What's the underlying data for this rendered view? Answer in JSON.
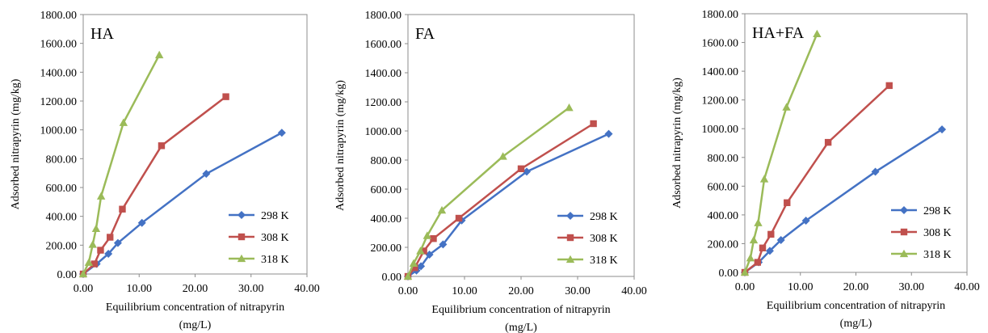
{
  "chart_data": [
    {
      "type": "line",
      "title": "HA",
      "xlabel_line1": "Equilibrium concentration of nitrapyrin",
      "xlabel_line2": "(mg/L)",
      "ylabel": "Adsorbed nitrapyrin (mg/kg)",
      "xlim": [
        0,
        40
      ],
      "ylim": [
        0,
        1800
      ],
      "xticks": [
        "0.00",
        "10.00",
        "20.00",
        "30.00",
        "40.00"
      ],
      "yticks": [
        "0.00",
        "200.00",
        "400.00",
        "600.00",
        "800.00",
        "1000.00",
        "1200.00",
        "1400.00",
        "1600.00",
        "1800.00"
      ],
      "grid": false,
      "legend_position": "bottom-right",
      "series": [
        {
          "name": "298 K",
          "color": "#4472C4",
          "marker": "diamond",
          "x": [
            0,
            2.4,
            4.5,
            6.2,
            10.5,
            22,
            35.5
          ],
          "y": [
            0,
            70,
            140,
            215,
            355,
            695,
            980
          ]
        },
        {
          "name": "308 K",
          "color": "#C0504D",
          "marker": "square",
          "x": [
            0,
            2.0,
            3.1,
            4.8,
            7.0,
            14.0,
            25.5
          ],
          "y": [
            0,
            70,
            165,
            255,
            450,
            890,
            1230
          ]
        },
        {
          "name": "318 K",
          "color": "#9BBB59",
          "marker": "triangle",
          "x": [
            0,
            1.0,
            1.7,
            2.3,
            3.2,
            7.2,
            13.6
          ],
          "y": [
            0,
            80,
            205,
            315,
            540,
            1050,
            1520
          ]
        }
      ]
    },
    {
      "type": "line",
      "title": "FA",
      "xlabel_line1": "Equilibrium concentration of nitrapyrin",
      "xlabel_line2": "(mg/L)",
      "ylabel": "Adsorbed nitrapyrin (mg/kg)",
      "xlim": [
        0,
        40
      ],
      "ylim": [
        0,
        1800
      ],
      "xticks": [
        "0.00",
        "10.00",
        "20.00",
        "30.00",
        "40.00"
      ],
      "yticks": [
        "0.00",
        "200.00",
        "400.00",
        "600.00",
        "800.00",
        "1000.00",
        "1200.00",
        "1400.00",
        "1600.00",
        "1800.00"
      ],
      "grid": false,
      "legend_position": "bottom-right",
      "series": [
        {
          "name": "298 K",
          "color": "#4472C4",
          "marker": "diamond",
          "x": [
            0,
            1.5,
            2.3,
            3.8,
            6.2,
            9.5,
            21,
            35.5
          ],
          "y": [
            0,
            40,
            70,
            150,
            220,
            385,
            720,
            980
          ]
        },
        {
          "name": "308 K",
          "color": "#C0504D",
          "marker": "square",
          "x": [
            0,
            1.2,
            2.8,
            4.5,
            9.0,
            20.0,
            32.8
          ],
          "y": [
            0,
            60,
            175,
            260,
            400,
            740,
            1050
          ]
        },
        {
          "name": "318 K",
          "color": "#9BBB59",
          "marker": "triangle",
          "x": [
            0,
            1.0,
            2.2,
            3.4,
            6.0,
            16.8,
            28.5
          ],
          "y": [
            0,
            90,
            175,
            280,
            455,
            825,
            1160
          ]
        }
      ]
    },
    {
      "type": "line",
      "title": "HA+FA",
      "xlabel_line1": "Equilibrium concentration of nitrapyrin",
      "xlabel_line2": "(mg/L)",
      "ylabel": "Adsorbed nitrapyrin (mg/kg)",
      "xlim": [
        0,
        40
      ],
      "ylim": [
        0,
        1800
      ],
      "xticks": [
        "0.00",
        "10.00",
        "20.00",
        "30.00",
        "40.00"
      ],
      "yticks": [
        "0.00",
        "200.00",
        "400.00",
        "600.00",
        "800.00",
        "1000.00",
        "1200.00",
        "1400.00",
        "1600.00",
        "1800.00"
      ],
      "grid": false,
      "legend_position": "bottom-right",
      "series": [
        {
          "name": "298 K",
          "color": "#4472C4",
          "marker": "diamond",
          "x": [
            0,
            2.5,
            4.5,
            6.5,
            11.0,
            23.5,
            35.5
          ],
          "y": [
            0,
            70,
            150,
            225,
            360,
            700,
            995
          ]
        },
        {
          "name": "308 K",
          "color": "#C0504D",
          "marker": "square",
          "x": [
            0,
            2.3,
            3.2,
            4.7,
            7.6,
            15.0,
            26.0
          ],
          "y": [
            0,
            70,
            170,
            265,
            485,
            905,
            1300
          ]
        },
        {
          "name": "318 K",
          "color": "#9BBB59",
          "marker": "triangle",
          "x": [
            0,
            1.0,
            1.6,
            2.4,
            3.5,
            7.5,
            13.0
          ],
          "y": [
            0,
            100,
            225,
            345,
            650,
            1150,
            1660
          ]
        }
      ]
    }
  ]
}
